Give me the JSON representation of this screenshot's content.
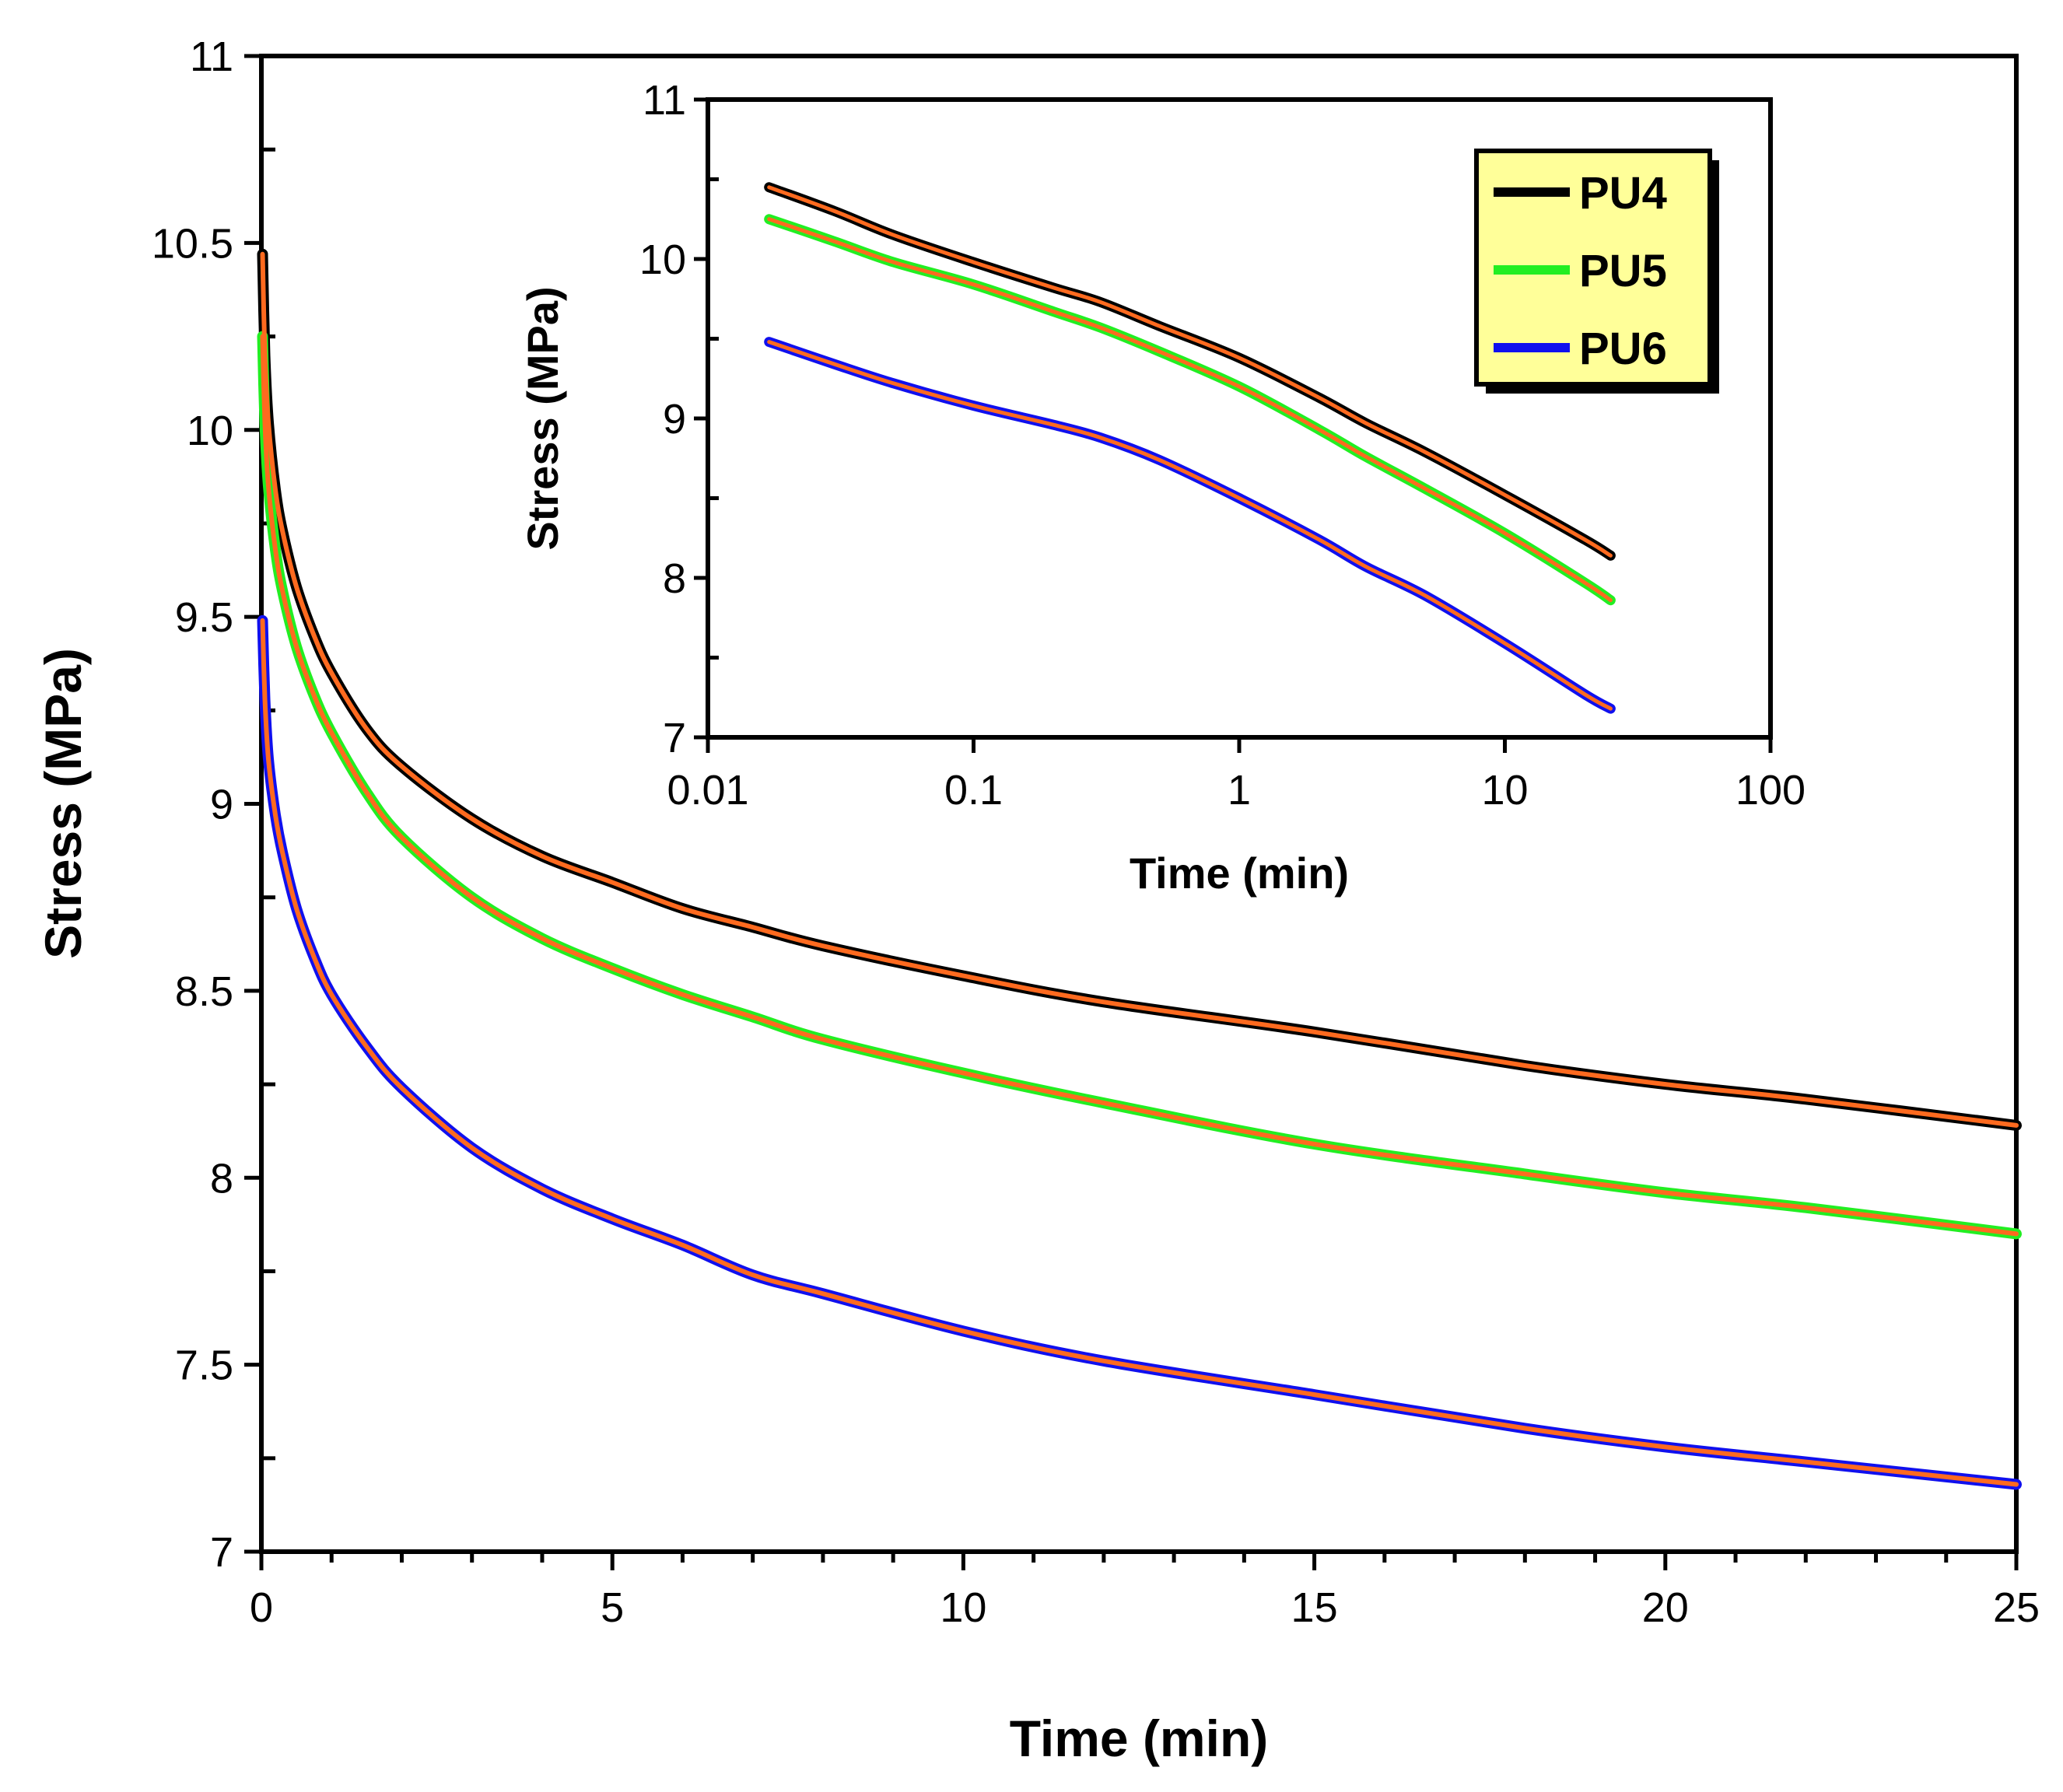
{
  "chart_data": [
    {
      "type": "line",
      "id": "main",
      "xlabel": "Time (min)",
      "ylabel": "Stress (MPa)",
      "xlim": [
        0,
        25
      ],
      "ylim": [
        7,
        11
      ],
      "x_ticks": [
        0,
        5,
        10,
        15,
        20,
        25
      ],
      "y_ticks": [
        7,
        7.5,
        8,
        8.5,
        9,
        9.5,
        10,
        10.5,
        11
      ],
      "x_tick_labels": [
        "0",
        "5",
        "10",
        "15",
        "20",
        "25"
      ],
      "y_tick_labels": [
        "7",
        "7.5",
        "8",
        "8.5",
        "9",
        "9.5",
        "10",
        "10.5",
        "11"
      ],
      "series": [
        {
          "name": "PU4",
          "color": "#000000",
          "x": [
            0.017,
            0.05,
            0.1,
            0.2,
            0.3,
            0.5,
            0.75,
            1,
            1.5,
            2,
            3,
            4,
            5,
            6,
            7,
            8,
            10,
            12,
            15,
            18,
            20,
            22,
            25
          ],
          "y": [
            10.47,
            10.2,
            10.02,
            9.84,
            9.73,
            9.58,
            9.45,
            9.35,
            9.2,
            9.1,
            8.96,
            8.86,
            8.79,
            8.72,
            8.67,
            8.62,
            8.54,
            8.47,
            8.39,
            8.3,
            8.25,
            8.21,
            8.14
          ]
        },
        {
          "name": "PU5",
          "color": "#22ee22",
          "x": [
            0.017,
            0.05,
            0.1,
            0.2,
            0.3,
            0.5,
            0.75,
            1,
            1.5,
            2,
            3,
            4,
            5,
            6,
            7,
            8,
            10,
            12,
            15,
            18,
            20,
            22,
            25
          ],
          "y": [
            10.25,
            10.02,
            9.85,
            9.68,
            9.57,
            9.42,
            9.29,
            9.19,
            9.03,
            8.91,
            8.75,
            8.64,
            8.56,
            8.49,
            8.43,
            8.37,
            8.28,
            8.2,
            8.09,
            8.01,
            7.96,
            7.92,
            7.85
          ]
        },
        {
          "name": "PU6",
          "color": "#1010ee",
          "x": [
            0.017,
            0.05,
            0.1,
            0.2,
            0.3,
            0.5,
            0.75,
            1,
            1.5,
            2,
            3,
            4,
            5,
            6,
            7,
            8,
            10,
            12,
            15,
            18,
            20,
            22,
            25
          ],
          "y": [
            9.49,
            9.28,
            9.12,
            8.97,
            8.87,
            8.72,
            8.59,
            8.49,
            8.35,
            8.24,
            8.08,
            7.97,
            7.89,
            7.82,
            7.74,
            7.69,
            7.59,
            7.51,
            7.42,
            7.33,
            7.28,
            7.24,
            7.18
          ]
        }
      ],
      "fit_color": "#ff6a1f",
      "legend": "none"
    },
    {
      "type": "line",
      "id": "inset",
      "xscale": "log",
      "xlabel": "Time (min)",
      "ylabel": "Stress (MPa)",
      "xlim": [
        0.01,
        100
      ],
      "ylim": [
        7,
        11
      ],
      "x_ticks": [
        0.01,
        0.1,
        1,
        10,
        100
      ],
      "y_ticks": [
        7,
        8,
        9,
        10,
        11
      ],
      "x_tick_labels": [
        "0.01",
        "0.1",
        "1",
        "10",
        "100"
      ],
      "y_tick_labels": [
        "7",
        "8",
        "9",
        "10",
        "11"
      ],
      "series": [
        {
          "name": "PU4",
          "color": "#000000",
          "x": [
            0.017,
            0.03,
            0.05,
            0.1,
            0.2,
            0.3,
            0.5,
            1,
            2,
            3,
            5,
            10,
            20,
            25
          ],
          "y": [
            10.45,
            10.3,
            10.15,
            9.98,
            9.82,
            9.73,
            9.58,
            9.38,
            9.13,
            8.97,
            8.79,
            8.52,
            8.24,
            8.14
          ]
        },
        {
          "name": "PU5",
          "color": "#22ee22",
          "x": [
            0.017,
            0.03,
            0.05,
            0.1,
            0.2,
            0.3,
            0.5,
            1,
            2,
            3,
            5,
            10,
            20,
            25
          ],
          "y": [
            10.25,
            10.11,
            9.98,
            9.84,
            9.67,
            9.57,
            9.42,
            9.2,
            8.93,
            8.76,
            8.56,
            8.28,
            7.97,
            7.86
          ]
        },
        {
          "name": "PU6",
          "color": "#1010ee",
          "x": [
            0.017,
            0.03,
            0.05,
            0.1,
            0.2,
            0.3,
            0.5,
            1,
            2,
            3,
            5,
            10,
            20,
            25
          ],
          "y": [
            9.48,
            9.34,
            9.22,
            9.08,
            8.96,
            8.88,
            8.74,
            8.5,
            8.24,
            8.07,
            7.89,
            7.59,
            7.27,
            7.18
          ]
        }
      ],
      "fit_color": "#ff6a1f",
      "legend": "top-right",
      "legend_background": "#ffff99"
    }
  ]
}
